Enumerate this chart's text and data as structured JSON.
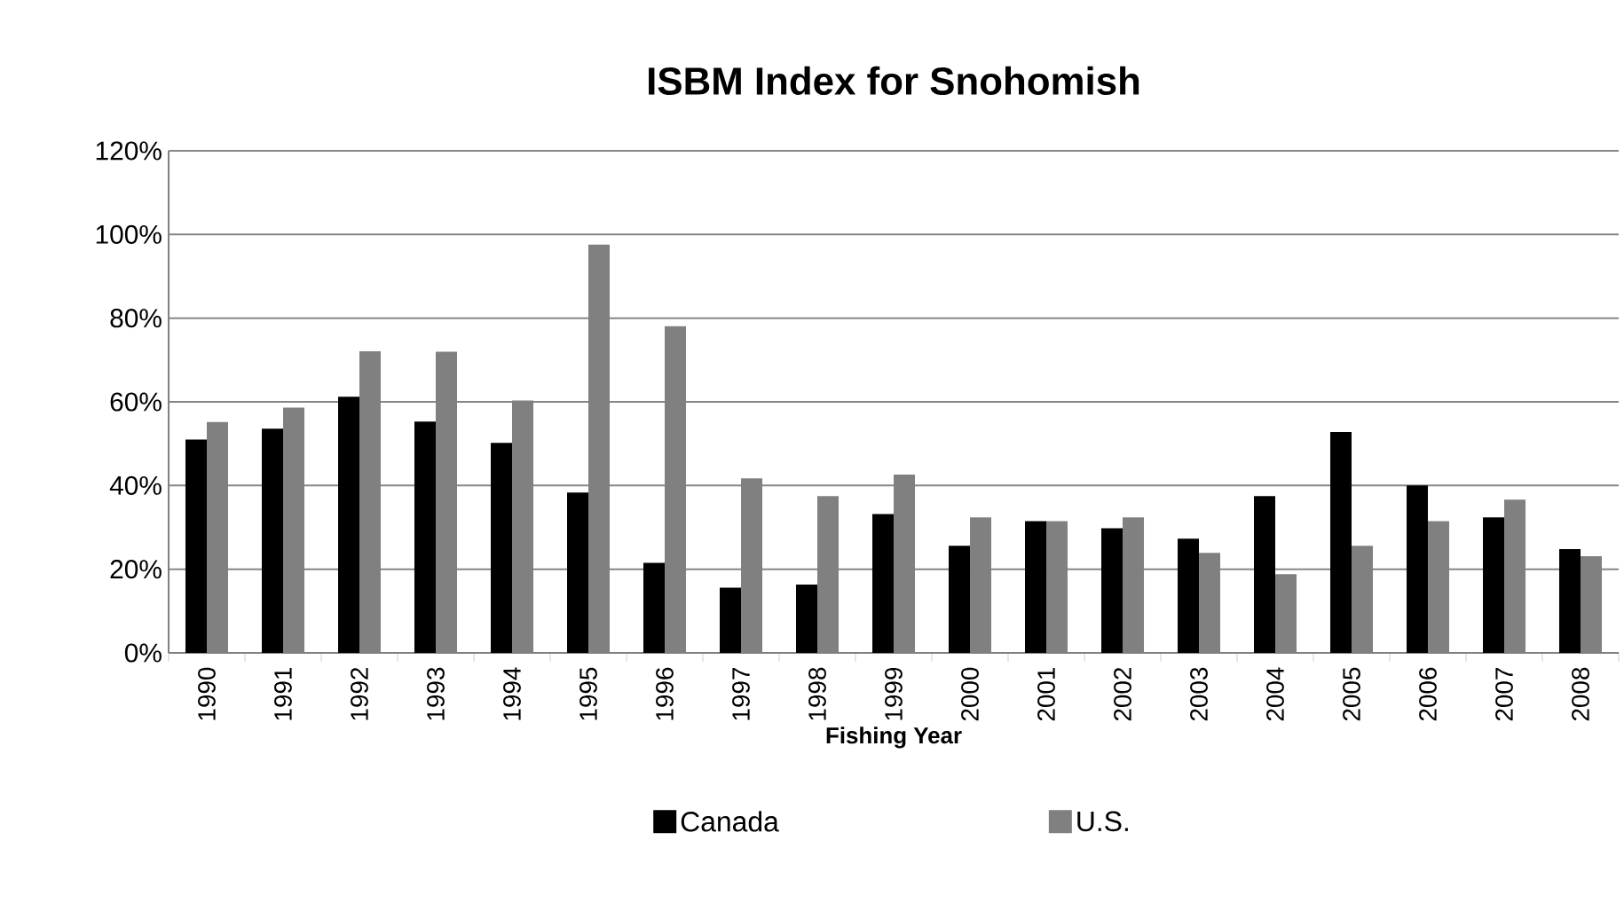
{
  "chart_data": {
    "type": "bar",
    "title": "ISBM Index for Snohomish",
    "xlabel": "Fishing Year",
    "categories": [
      "1990",
      "1991",
      "1992",
      "1993",
      "1994",
      "1995",
      "1996",
      "1997",
      "1998",
      "1999",
      "2000",
      "2001",
      "2002",
      "2003",
      "2004",
      "2005",
      "2006",
      "2007",
      "2008"
    ],
    "series": [
      {
        "name": "Canada",
        "color": "#000000",
        "values": [
          51,
          53.6,
          61.2,
          55.3,
          50.2,
          38.3,
          21.5,
          15.6,
          16.3,
          33.2,
          25.6,
          31.5,
          29.8,
          27.3,
          37.5,
          52.8,
          40,
          32.4,
          24.8
        ]
      },
      {
        "name": "U.S.",
        "color": "#808080",
        "values": [
          55.2,
          58.6,
          72.1,
          72,
          60.3,
          97.6,
          78.1,
          41.7,
          37.5,
          42.6,
          32.4,
          31.5,
          32.4,
          23.9,
          18.8,
          25.6,
          31.5,
          36.6,
          23.1
        ]
      }
    ],
    "ylim": [
      0,
      120
    ],
    "yticks": [
      {
        "value": 0,
        "label": "0%"
      },
      {
        "value": 20,
        "label": "20%"
      },
      {
        "value": 40,
        "label": "40%"
      },
      {
        "value": 60,
        "label": "60%"
      },
      {
        "value": 80,
        "label": "80%"
      },
      {
        "value": 100,
        "label": "100%"
      },
      {
        "value": 120,
        "label": "120%"
      }
    ],
    "grid": "y",
    "legend": "bottom"
  }
}
